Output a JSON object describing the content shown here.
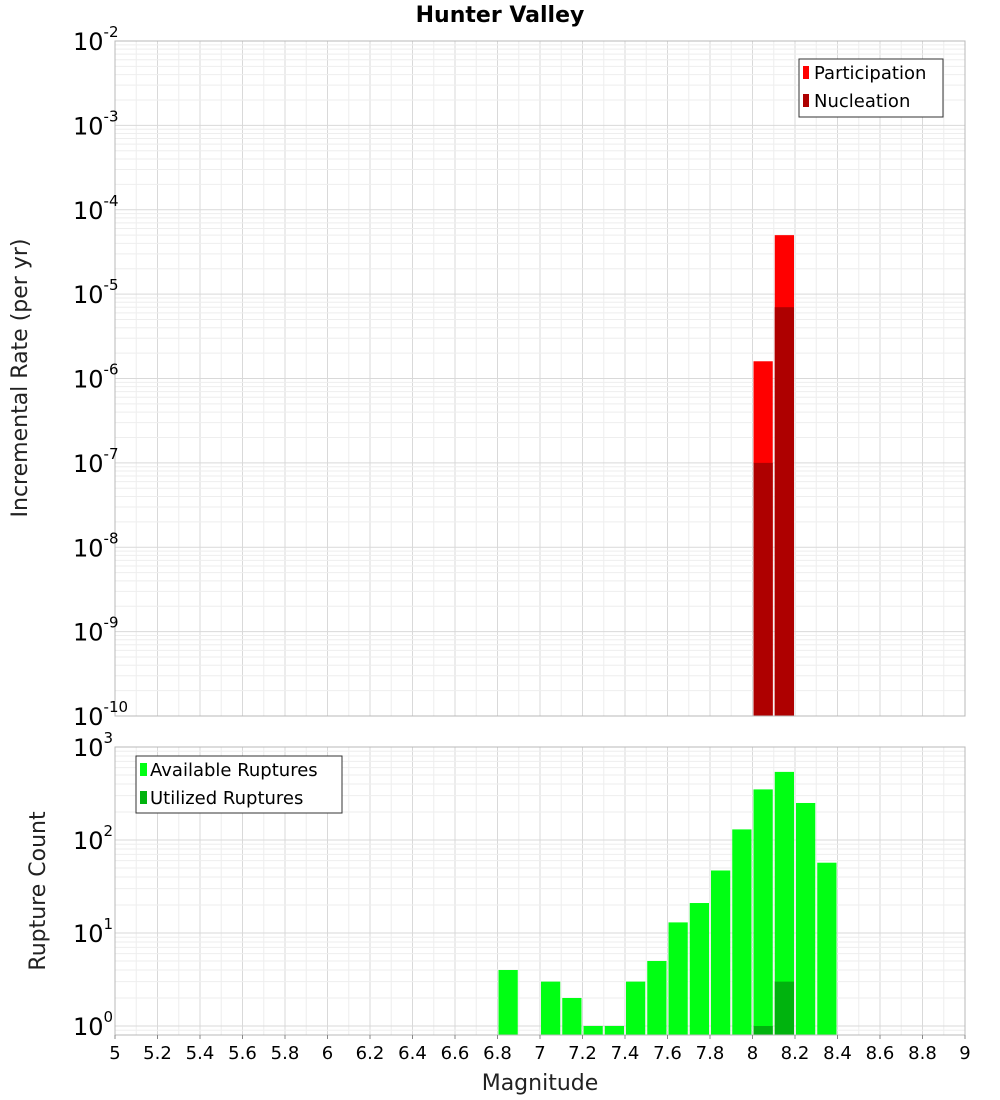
{
  "title": "Hunter Valley",
  "colors": {
    "participation": "#ff0000",
    "nucleation": "#ae0000",
    "available": "#00ff13",
    "utilized": "#00b30e",
    "grid_major": "#d9d9d9",
    "grid_minor": "#eeeeee"
  },
  "chart_data": [
    {
      "type": "bar",
      "name": "rate-panel",
      "ylabel": "Incremental Rate (per yr)",
      "yscale": "log",
      "ylim": [
        1e-10,
        0.01
      ],
      "xlim": [
        5,
        9
      ],
      "bin_width": 0.1,
      "ytick_labels": [
        {
          "value": 1e-10,
          "base": "10",
          "exp": "-10"
        },
        {
          "value": 1e-09,
          "base": "10",
          "exp": "-9"
        },
        {
          "value": 1e-08,
          "base": "10",
          "exp": "-8"
        },
        {
          "value": 1e-07,
          "base": "10",
          "exp": "-7"
        },
        {
          "value": 1e-06,
          "base": "10",
          "exp": "-6"
        },
        {
          "value": 1e-05,
          "base": "10",
          "exp": "-5"
        },
        {
          "value": 0.0001,
          "base": "10",
          "exp": "-4"
        },
        {
          "value": 0.001,
          "base": "10",
          "exp": "-3"
        },
        {
          "value": 0.01,
          "base": "10",
          "exp": "-2"
        }
      ],
      "legend": {
        "position": "top-right",
        "entries": [
          "Participation",
          "Nucleation"
        ]
      },
      "grid": true,
      "series": [
        {
          "name": "Participation",
          "color": "#ff0000",
          "x": [
            8.05,
            8.15
          ],
          "values": [
            1.6e-06,
            5e-05
          ]
        },
        {
          "name": "Nucleation",
          "color": "#ae0000",
          "x": [
            8.05,
            8.15
          ],
          "values": [
            1e-07,
            7e-06
          ]
        }
      ]
    },
    {
      "type": "bar",
      "name": "count-panel",
      "ylabel": "Rupture Count",
      "xlabel": "Magnitude",
      "yscale": "log",
      "ylim": [
        0.8,
        1000
      ],
      "xlim": [
        5,
        9
      ],
      "bin_width": 0.1,
      "ytick_labels": [
        {
          "value": 1,
          "base": "10",
          "exp": "0"
        },
        {
          "value": 10,
          "base": "10",
          "exp": "1"
        },
        {
          "value": 100,
          "base": "10",
          "exp": "2"
        },
        {
          "value": 1000,
          "base": "10",
          "exp": "3"
        }
      ],
      "xtick_labels": [
        "5",
        "5.2",
        "5.4",
        "5.6",
        "5.8",
        "6",
        "6.2",
        "6.4",
        "6.6",
        "6.8",
        "7",
        "7.2",
        "7.4",
        "7.6",
        "7.8",
        "8",
        "8.2",
        "8.4",
        "8.6",
        "8.8",
        "9"
      ],
      "legend": {
        "position": "top-left",
        "entries": [
          "Available Ruptures",
          "Utilized Ruptures"
        ]
      },
      "grid": true,
      "series": [
        {
          "name": "Available Ruptures",
          "color": "#00ff13",
          "x": [
            6.85,
            7.05,
            7.15,
            7.25,
            7.35,
            7.45,
            7.55,
            7.65,
            7.75,
            7.85,
            7.95,
            8.05,
            8.15,
            8.25,
            8.35
          ],
          "values": [
            4,
            3,
            2,
            1,
            1,
            3,
            5,
            13,
            21,
            47,
            130,
            350,
            540,
            250,
            57
          ]
        },
        {
          "name": "Utilized Ruptures",
          "color": "#00b30e",
          "x": [
            8.05,
            8.15
          ],
          "values": [
            1,
            3
          ]
        }
      ]
    }
  ]
}
